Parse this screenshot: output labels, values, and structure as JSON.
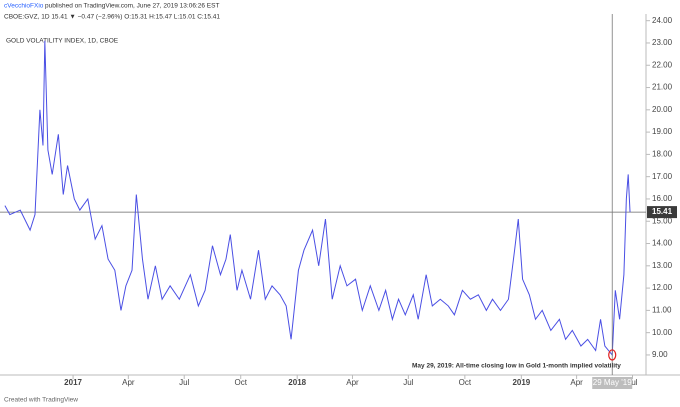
{
  "header": {
    "publisher": "cVecchioFXio",
    "published": "published on TradingView.com, June 27, 2019 13:06:26 EST",
    "quote": "CBOE:GVZ, 1D 15.41 ▼ −0.47 (−2.96%) O:15.31 H:15.47 L:15.01 C:15.41"
  },
  "footer": "Created with TradingView",
  "chart_data": {
    "type": "line",
    "title": "GOLD VOLATILITY INDEX, 1D, CBOE",
    "annotation": "May 29, 2019: All-time closing low in Gold 1-month implied volatility",
    "crosshair": {
      "x": "2019-05-29",
      "label": "29 May '19"
    },
    "x": [
      "2016-09-12",
      "2016-09-20",
      "2016-10-07",
      "2016-10-23",
      "2016-10-31",
      "2016-11-08",
      "2016-11-13",
      "2016-11-16",
      "2016-11-21",
      "2016-11-28",
      "2016-12-08",
      "2016-12-16",
      "2016-12-23",
      "2017-01-03",
      "2017-01-12",
      "2017-01-25",
      "2017-02-06",
      "2017-02-17",
      "2017-02-27",
      "2017-03-10",
      "2017-03-20",
      "2017-03-28",
      "2017-04-07",
      "2017-04-14",
      "2017-04-24",
      "2017-05-03",
      "2017-05-15",
      "2017-05-26",
      "2017-06-08",
      "2017-06-23",
      "2017-07-11",
      "2017-07-24",
      "2017-08-04",
      "2017-08-16",
      "2017-08-29",
      "2017-09-07",
      "2017-09-14",
      "2017-09-25",
      "2017-10-03",
      "2017-10-17",
      "2017-10-30",
      "2017-11-10",
      "2017-11-21",
      "2017-12-04",
      "2017-12-14",
      "2017-12-22",
      "2018-01-03",
      "2018-01-12",
      "2018-01-26",
      "2018-02-05",
      "2018-02-16",
      "2018-02-27",
      "2018-03-12",
      "2018-03-23",
      "2018-04-06",
      "2018-04-17",
      "2018-04-30",
      "2018-05-14",
      "2018-05-25",
      "2018-06-05",
      "2018-06-15",
      "2018-06-26",
      "2018-07-09",
      "2018-07-17",
      "2018-07-30",
      "2018-08-09",
      "2018-08-22",
      "2018-09-04",
      "2018-09-14",
      "2018-09-27",
      "2018-10-10",
      "2018-10-23",
      "2018-11-05",
      "2018-11-15",
      "2018-11-28",
      "2018-12-11",
      "2018-12-21",
      "2018-12-27",
      "2019-01-03",
      "2019-01-14",
      "2019-01-24",
      "2019-02-04",
      "2019-02-18",
      "2019-03-04",
      "2019-03-14",
      "2019-03-25",
      "2019-04-08",
      "2019-04-19",
      "2019-05-02",
      "2019-05-10",
      "2019-05-17",
      "2019-05-29",
      "2019-06-03",
      "2019-06-10",
      "2019-06-17",
      "2019-06-21",
      "2019-06-24",
      "2019-06-27"
    ],
    "series": [
      {
        "name": "GVZ",
        "color": "#4a4fe4",
        "values": [
          15.7,
          15.3,
          15.5,
          14.6,
          15.3,
          20.0,
          18.4,
          23.1,
          18.2,
          17.1,
          18.9,
          16.2,
          17.5,
          16.0,
          15.5,
          16.0,
          14.2,
          14.8,
          13.3,
          12.8,
          11.0,
          12.1,
          12.8,
          16.2,
          13.3,
          11.5,
          13.0,
          11.5,
          12.1,
          11.5,
          12.6,
          11.2,
          11.9,
          13.9,
          12.6,
          13.3,
          14.4,
          11.9,
          12.8,
          11.5,
          13.7,
          11.5,
          12.1,
          11.7,
          11.2,
          9.7,
          12.8,
          13.7,
          14.6,
          13.0,
          15.1,
          11.5,
          13.0,
          12.1,
          12.4,
          11.0,
          12.1,
          11.0,
          11.9,
          10.6,
          11.5,
          10.8,
          11.7,
          10.6,
          12.6,
          11.2,
          11.5,
          11.2,
          10.8,
          11.9,
          11.5,
          11.7,
          11.0,
          11.5,
          11.0,
          11.5,
          13.7,
          15.1,
          12.4,
          11.7,
          10.6,
          11.0,
          10.1,
          10.6,
          9.7,
          10.1,
          9.4,
          9.7,
          9.2,
          10.6,
          9.4,
          9.0,
          11.9,
          10.6,
          12.6,
          16.0,
          17.1,
          15.41
        ]
      }
    ],
    "xlim": [
      "2016-09-04",
      "2019-07-23"
    ],
    "xticks": [
      {
        "value": "2017-01-01",
        "label": "2017"
      },
      {
        "value": "2017-04-01",
        "label": "Apr"
      },
      {
        "value": "2017-07-01",
        "label": "Jul"
      },
      {
        "value": "2017-10-01",
        "label": "Oct"
      },
      {
        "value": "2018-01-01",
        "label": "2018"
      },
      {
        "value": "2018-04-01",
        "label": "Apr"
      },
      {
        "value": "2018-07-01",
        "label": "Jul"
      },
      {
        "value": "2018-10-01",
        "label": "Oct"
      },
      {
        "value": "2019-01-01",
        "label": "2019"
      },
      {
        "value": "2019-04-01",
        "label": "Apr"
      },
      {
        "value": "2019-07-01",
        "label": "Jul"
      }
    ],
    "ylim": [
      8.1,
      24.3
    ],
    "yticks": [
      {
        "value": 9,
        "label": "9.00"
      },
      {
        "value": 10,
        "label": "10.00"
      },
      {
        "value": 11,
        "label": "11.00"
      },
      {
        "value": 12,
        "label": "12.00"
      },
      {
        "value": 13,
        "label": "13.00"
      },
      {
        "value": 14,
        "label": "14.00"
      },
      {
        "value": 15,
        "label": "15.00"
      },
      {
        "value": 16,
        "label": "16.00"
      },
      {
        "value": 17,
        "label": "17.00"
      },
      {
        "value": 18,
        "label": "18.00"
      },
      {
        "value": 19,
        "label": "19.00"
      },
      {
        "value": 20,
        "label": "20.00"
      },
      {
        "value": 21,
        "label": "21.00"
      },
      {
        "value": 22,
        "label": "22.00"
      },
      {
        "value": 23,
        "label": "23.00"
      },
      {
        "value": 24,
        "label": "24.00"
      }
    ],
    "grid": false
  }
}
